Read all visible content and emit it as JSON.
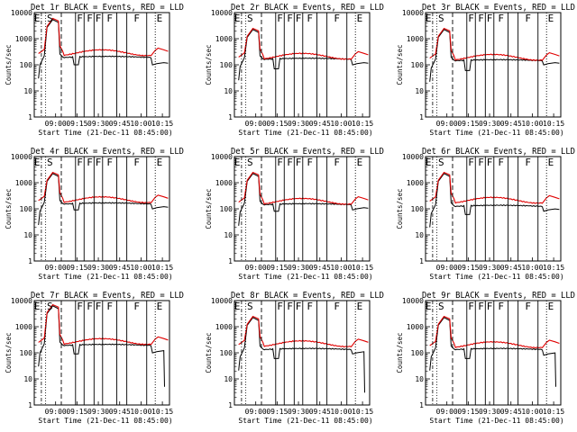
{
  "figure": {
    "type": "line",
    "colors": {
      "events": "#000000",
      "lld": "#e00000",
      "background": "#ffffff",
      "axis": "#000000"
    }
  },
  "chart_data": [
    {
      "type": "line",
      "detector": "1r",
      "title": "Det 1r BLACK = Events, RED = LLD",
      "xlabel": "Start Time (21-Dec-11 08:45:00)",
      "ylabel": "Counts/sec",
      "x_ticks": [
        "09:00",
        "09:15",
        "09:30",
        "09:45",
        "10:00",
        "10:15"
      ],
      "y_ticks": [
        "1",
        "10",
        "100",
        "1000",
        "10000"
      ],
      "ylim": [
        1,
        10000
      ],
      "yscale": "log",
      "time_range": [
        "08:45",
        "10:20"
      ],
      "letters": [
        "E",
        "S",
        "F",
        "F",
        "F",
        "F",
        "F",
        "E"
      ],
      "peak": 6000,
      "lld_flat": 300,
      "events_flat": 200,
      "events_dip": 100,
      "tail_events": 110,
      "final_drop": null
    },
    {
      "type": "line",
      "detector": "2r",
      "title": "Det 2r BLACK = Events, RED = LLD",
      "xlabel": "Start Time (21-Dec-11 08:45:00)",
      "ylabel": "Counts/sec",
      "x_ticks": [
        "09:00",
        "09:15",
        "09:30",
        "09:45",
        "10:00",
        "10:15"
      ],
      "y_ticks": [
        "1",
        "10",
        "100",
        "1000",
        "10000"
      ],
      "ylim": [
        1,
        10000
      ],
      "yscale": "log",
      "time_range": [
        "08:45",
        "10:20"
      ],
      "letters": [
        "E",
        "S",
        "F",
        "F",
        "F",
        "F",
        "F",
        "E"
      ],
      "peak": 2500,
      "lld_flat": 220,
      "events_flat": 170,
      "events_dip": 70,
      "tail_events": 110,
      "final_drop": null
    },
    {
      "type": "line",
      "detector": "3r",
      "title": "Det 3r BLACK = Events, RED = LLD",
      "xlabel": "Start Time (21-Dec-11 08:45:00)",
      "ylabel": "Counts/sec",
      "x_ticks": [
        "09:00",
        "09:15",
        "09:30",
        "09:45",
        "10:00",
        "10:15"
      ],
      "y_ticks": [
        "1",
        "10",
        "100",
        "1000",
        "10000"
      ],
      "ylim": [
        1,
        10000
      ],
      "yscale": "log",
      "time_range": [
        "08:45",
        "10:20"
      ],
      "letters": [
        "E",
        "S",
        "F",
        "F",
        "F",
        "F",
        "F",
        "E"
      ],
      "peak": 2500,
      "lld_flat": 200,
      "events_flat": 150,
      "events_dip": 60,
      "tail_events": 110,
      "final_drop": null
    },
    {
      "type": "line",
      "detector": "4r",
      "title": "Det 4r BLACK = Events, RED = LLD",
      "xlabel": "Start Time (21-Dec-11 08:45:00)",
      "ylabel": "Counts/sec",
      "x_ticks": [
        "09:00",
        "09:15",
        "09:30",
        "09:45",
        "10:00",
        "10:15"
      ],
      "y_ticks": [
        "1",
        "10",
        "100",
        "1000",
        "10000"
      ],
      "ylim": [
        1,
        10000
      ],
      "yscale": "log",
      "time_range": [
        "08:45",
        "10:20"
      ],
      "letters": [
        "E",
        "S",
        "F",
        "F",
        "F",
        "F",
        "F",
        "E"
      ],
      "peak": 2500,
      "lld_flat": 230,
      "events_flat": 160,
      "events_dip": 90,
      "tail_events": 110,
      "final_drop": null
    },
    {
      "type": "line",
      "detector": "5r",
      "title": "Det 5r BLACK = Events, RED = LLD",
      "xlabel": "Start Time (21-Dec-11 08:45:00)",
      "ylabel": "Counts/sec",
      "x_ticks": [
        "09:00",
        "09:15",
        "09:30",
        "09:45",
        "10:00",
        "10:15"
      ],
      "y_ticks": [
        "1",
        "10",
        "100",
        "1000",
        "10000"
      ],
      "ylim": [
        1,
        10000
      ],
      "yscale": "log",
      "time_range": [
        "08:45",
        "10:20"
      ],
      "letters": [
        "E",
        "S",
        "F",
        "F",
        "F",
        "F",
        "F",
        "E"
      ],
      "peak": 2500,
      "lld_flat": 200,
      "events_flat": 150,
      "events_dip": 80,
      "tail_events": 100,
      "final_drop": null
    },
    {
      "type": "line",
      "detector": "6r",
      "title": "Det 6r BLACK = Events, RED = LLD",
      "xlabel": "Start Time (21-Dec-11 08:45:00)",
      "ylabel": "Counts/sec",
      "x_ticks": [
        "09:00",
        "09:15",
        "09:30",
        "09:45",
        "10:00",
        "10:15"
      ],
      "y_ticks": [
        "1",
        "10",
        "100",
        "1000",
        "10000"
      ],
      "ylim": [
        1,
        10000
      ],
      "yscale": "log",
      "time_range": [
        "08:45",
        "10:20"
      ],
      "letters": [
        "E",
        "S",
        "F",
        "F",
        "F",
        "F",
        "F",
        "E"
      ],
      "peak": 2500,
      "lld_flat": 220,
      "events_flat": 130,
      "events_dip": 60,
      "tail_events": 90,
      "final_drop": null
    },
    {
      "type": "line",
      "detector": "7r",
      "title": "Det 7r BLACK = Events, RED = LLD",
      "xlabel": "Start Time (21-Dec-11 08:45:00)",
      "ylabel": "Counts/sec",
      "x_ticks": [
        "09:00",
        "09:15",
        "09:30",
        "09:45",
        "10:00",
        "10:15"
      ],
      "y_ticks": [
        "1",
        "10",
        "100",
        "1000",
        "10000"
      ],
      "ylim": [
        1,
        10000
      ],
      "yscale": "log",
      "time_range": [
        "08:45",
        "10:20"
      ],
      "letters": [
        "E",
        "S",
        "F",
        "F",
        "F",
        "F",
        "F",
        "E"
      ],
      "peak": 7000,
      "lld_flat": 280,
      "events_flat": 200,
      "events_dip": 90,
      "tail_events": 110,
      "final_drop": 5
    },
    {
      "type": "line",
      "detector": "8r",
      "title": "Det 8r BLACK = Events, RED = LLD",
      "xlabel": "Start Time (21-Dec-11 08:45:00)",
      "ylabel": "Counts/sec",
      "x_ticks": [
        "09:00",
        "09:15",
        "09:30",
        "09:45",
        "10:00",
        "10:15"
      ],
      "y_ticks": [
        "1",
        "10",
        "100",
        "1000",
        "10000"
      ],
      "ylim": [
        1,
        10000
      ],
      "yscale": "log",
      "time_range": [
        "08:45",
        "10:20"
      ],
      "letters": [
        "E",
        "S",
        "F",
        "F",
        "F",
        "F",
        "F",
        "E"
      ],
      "peak": 2500,
      "lld_flat": 230,
      "events_flat": 140,
      "events_dip": 60,
      "tail_events": 100,
      "final_drop": 3
    },
    {
      "type": "line",
      "detector": "9r",
      "title": "Det 9r BLACK = Events, RED = LLD",
      "xlabel": "Start Time (21-Dec-11 08:45:00)",
      "ylabel": "Counts/sec",
      "x_ticks": [
        "09:00",
        "09:15",
        "09:30",
        "09:45",
        "10:00",
        "10:15"
      ],
      "y_ticks": [
        "1",
        "10",
        "100",
        "1000",
        "10000"
      ],
      "ylim": [
        1,
        10000
      ],
      "yscale": "log",
      "time_range": [
        "08:45",
        "10:20"
      ],
      "letters": [
        "E",
        "S",
        "F",
        "F",
        "F",
        "F",
        "F",
        "E"
      ],
      "peak": 2500,
      "lld_flat": 210,
      "events_flat": 140,
      "events_dip": 60,
      "tail_events": 90,
      "final_drop": 5
    }
  ]
}
